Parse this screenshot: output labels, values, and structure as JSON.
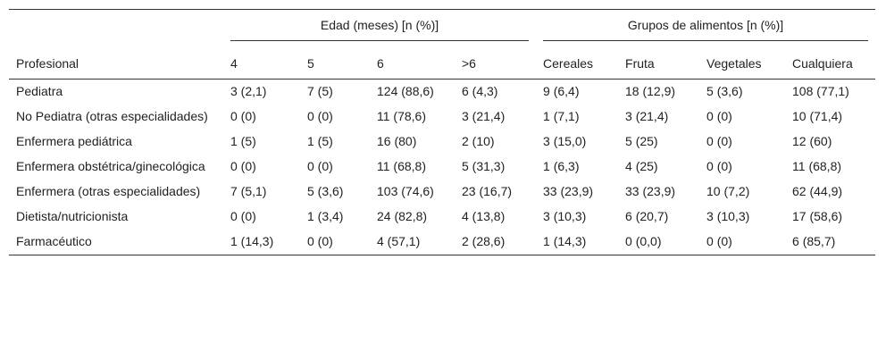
{
  "header": {
    "stub": "Profesional",
    "groups": [
      "Edad (meses) [n (%)]",
      "Grupos de alimentos [n (%)]"
    ],
    "columns": [
      "4",
      "5",
      "6",
      ">6",
      "Cereales",
      "Fruta",
      "Vegetales",
      "Cualquiera"
    ]
  },
  "table": {
    "rows": [
      [
        "Pediatra",
        "3 (2,1)",
        "7 (5)",
        "124 (88,6)",
        "6 (4,3)",
        "9 (6,4)",
        "18 (12,9)",
        "5 (3,6)",
        "108 (77,1)"
      ],
      [
        "No Pediatra (otras especialidades)",
        "0 (0)",
        "0 (0)",
        "11 (78,6)",
        "3 (21,4)",
        "1 (7,1)",
        "3 (21,4)",
        "0 (0)",
        "10 (71,4)"
      ],
      [
        "Enfermera pediátrica",
        "1 (5)",
        "1 (5)",
        "16 (80)",
        "2 (10)",
        "3 (15,0)",
        "5 (25)",
        "0 (0)",
        "12 (60)"
      ],
      [
        "Enfermera obstétrica/ginecológica",
        "0 (0)",
        "0 (0)",
        "11 (68,8)",
        "5 (31,3)",
        "1 (6,3)",
        "4 (25)",
        "0 (0)",
        "11 (68,8)"
      ],
      [
        "Enfermera (otras especialidades)",
        "7 (5,1)",
        "5 (3,6)",
        "103 (74,6)",
        "23 (16,7)",
        "33 (23,9)",
        "33 (23,9)",
        "10 (7,2)",
        "62 (44,9)"
      ],
      [
        "Dietista/nutricionista",
        "0 (0)",
        "1 (3,4)",
        "24 (82,8)",
        "4 (13,8)",
        "3 (10,3)",
        "6 (20,7)",
        "3 (10,3)",
        "17 (58,6)"
      ],
      [
        "Farmacéutico",
        "1 (14,3)",
        "0 (0)",
        "4 (57,1)",
        "2 (28,6)",
        "1 (14,3)",
        "0 (0,0)",
        "0 (0)",
        "6 (85,7)"
      ]
    ]
  }
}
